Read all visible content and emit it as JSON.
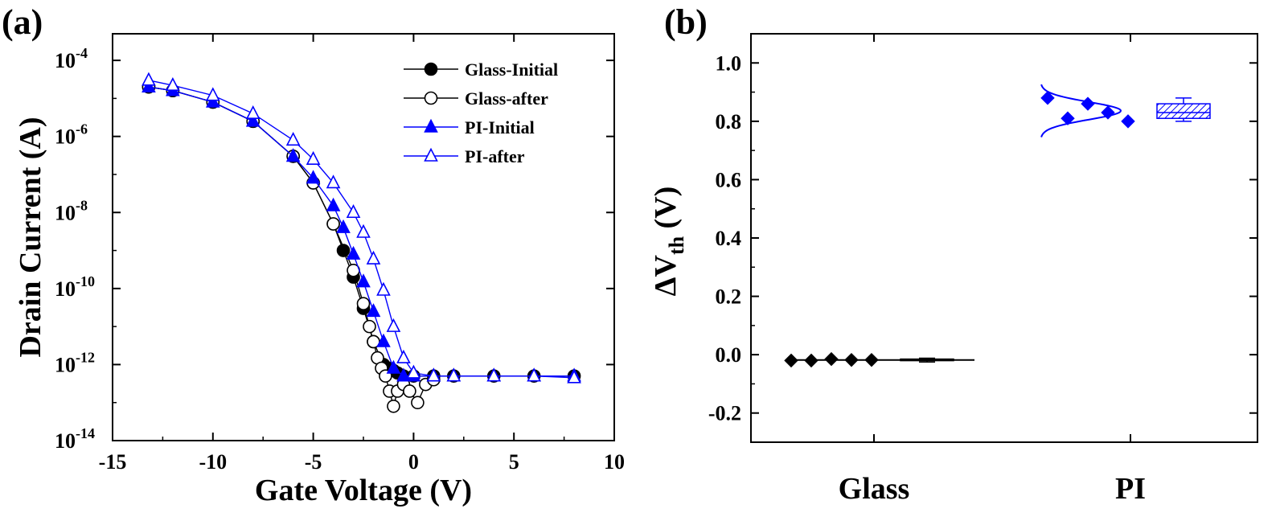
{
  "chart_data": [
    {
      "panel": "(a)",
      "type": "scatter",
      "xlabel": "Gate Voltage (V)",
      "ylabel": "Drain Current (A)",
      "xlim": [
        -15,
        10
      ],
      "ylim_log10": [
        -14,
        -3.3
      ],
      "xticks": [
        -15,
        -10,
        -5,
        0,
        5,
        10
      ],
      "xtick_labels": [
        "-15",
        "-10",
        "-5",
        "0",
        "5",
        "10"
      ],
      "yticks_log10": [
        -14,
        -12,
        -10,
        -8,
        -6,
        -4
      ],
      "ytick_base": "10",
      "ytick_exponents": [
        "-14",
        "-12",
        "-10",
        "-8",
        "-6",
        "-4"
      ],
      "legend_position": "top-right",
      "series": [
        {
          "name": "Glass-Initial",
          "color": "#000000",
          "marker": "circle-filled",
          "x": [
            -13.2,
            -12.0,
            -10.0,
            -8.0,
            -6.0,
            -5.0,
            -4.0,
            -3.5,
            -3.0,
            -2.5,
            -2.0,
            -1.5,
            -1.2,
            -1.0,
            -0.8,
            -0.5,
            0.0,
            1.0,
            2.0,
            4.0,
            6.0,
            8.0
          ],
          "y": [
            2e-05,
            1.6e-05,
            8e-06,
            2.5e-06,
            3e-07,
            6e-08,
            5e-09,
            1e-09,
            2e-10,
            3e-11,
            4e-12,
            1e-12,
            8e-13,
            7e-13,
            6e-13,
            5e-13,
            5e-13,
            5e-13,
            5e-13,
            5e-13,
            5e-13,
            5e-13
          ]
        },
        {
          "name": "Glass-after",
          "color": "#000000",
          "marker": "circle-open",
          "x": [
            -13.2,
            -12.0,
            -10.0,
            -8.0,
            -6.0,
            -5.0,
            -4.0,
            -3.0,
            -2.5,
            -2.2,
            -2.0,
            -1.8,
            -1.6,
            -1.4,
            -1.2,
            -1.0,
            -0.8,
            -0.5,
            -0.2,
            0.2,
            0.6,
            1.0
          ],
          "y": [
            2e-05,
            1.6e-05,
            8e-06,
            2.5e-06,
            3e-07,
            6e-08,
            5e-09,
            3e-10,
            4e-11,
            1e-11,
            4e-12,
            1.5e-12,
            8e-13,
            5e-13,
            2e-13,
            8e-14,
            2e-13,
            3e-13,
            2e-13,
            1e-13,
            3e-13,
            4e-13
          ]
        },
        {
          "name": "PI-Initial",
          "color": "#0000ff",
          "marker": "triangle-filled",
          "x": [
            -13.2,
            -12.0,
            -10.0,
            -8.0,
            -6.0,
            -5.0,
            -4.0,
            -3.5,
            -3.0,
            -2.5,
            -2.0,
            -1.5,
            -1.0,
            -0.5,
            0.0,
            1.0,
            2.0,
            4.0,
            6.0,
            8.0
          ],
          "y": [
            2e-05,
            1.6e-05,
            8e-06,
            2.5e-06,
            3e-07,
            8e-08,
            1.5e-08,
            4e-09,
            8e-10,
            1.5e-10,
            2.5e-11,
            4e-12,
            8e-13,
            5e-13,
            5e-13,
            5e-13,
            5e-13,
            5e-13,
            5e-13,
            5e-13
          ]
        },
        {
          "name": "PI-after",
          "color": "#0000ff",
          "marker": "triangle-open",
          "x": [
            -13.2,
            -12.0,
            -10.0,
            -8.0,
            -6.0,
            -5.0,
            -4.0,
            -3.0,
            -2.5,
            -2.0,
            -1.5,
            -1.0,
            -0.5,
            0.0,
            1.0,
            2.0,
            4.0,
            6.0,
            8.0
          ],
          "y": [
            3e-05,
            2.2e-05,
            1.2e-05,
            4e-06,
            8e-07,
            2.5e-07,
            6e-08,
            1e-08,
            3e-09,
            6e-10,
            9e-11,
            1e-11,
            1.5e-12,
            6e-13,
            5e-13,
            5e-13,
            5e-13,
            5e-13,
            4.5e-13
          ]
        }
      ]
    },
    {
      "panel": "(b)",
      "type": "scatter",
      "xlabel": "",
      "ylabel_main": "ΔV",
      "ylabel_sub": "th",
      "ylabel_unit": " (V)",
      "ylim": [
        -0.3,
        1.1
      ],
      "yticks": [
        -0.2,
        0.0,
        0.2,
        0.4,
        0.6,
        0.8,
        1.0
      ],
      "ytick_labels": [
        "-0.2",
        "0.0",
        "0.2",
        "0.4",
        "0.6",
        "0.8",
        "1.0"
      ],
      "categories": [
        "Glass",
        "PI"
      ],
      "series": [
        {
          "name": "Glass",
          "color": "#000000",
          "points": [
            -0.02,
            -0.02,
            -0.015,
            -0.018,
            -0.018
          ],
          "box": {
            "min": -0.025,
            "q1": -0.02,
            "median": -0.018,
            "q3": -0.015,
            "max": -0.012
          }
        },
        {
          "name": "PI",
          "color": "#0000ff",
          "points": [
            0.88,
            0.81,
            0.86,
            0.83,
            0.8
          ],
          "box": {
            "min": 0.8,
            "q1": 0.81,
            "median": 0.83,
            "q3": 0.86,
            "max": 0.88
          }
        }
      ]
    }
  ]
}
